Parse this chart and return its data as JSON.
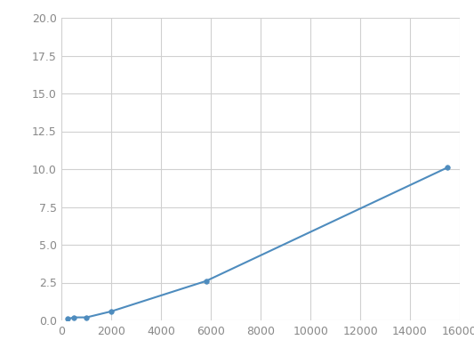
{
  "x": [
    250,
    500,
    1000,
    2000,
    5800,
    15500
  ],
  "y": [
    0.1,
    0.2,
    0.2,
    0.6,
    2.6,
    10.1
  ],
  "line_color": "#4e8cbe",
  "marker_color": "#4e8cbe",
  "marker_style": "o",
  "marker_size": 4,
  "line_width": 1.5,
  "xlim": [
    0,
    16000
  ],
  "ylim": [
    0.0,
    20.0
  ],
  "xticks": [
    0,
    2000,
    4000,
    6000,
    8000,
    10000,
    12000,
    14000,
    16000
  ],
  "yticks": [
    0.0,
    2.5,
    5.0,
    7.5,
    10.0,
    12.5,
    15.0,
    17.5,
    20.0
  ],
  "grid_color": "#d0d0d0",
  "background_color": "#ffffff",
  "figure_background": "#ffffff",
  "tick_label_color": "#888888",
  "tick_fontsize": 9
}
